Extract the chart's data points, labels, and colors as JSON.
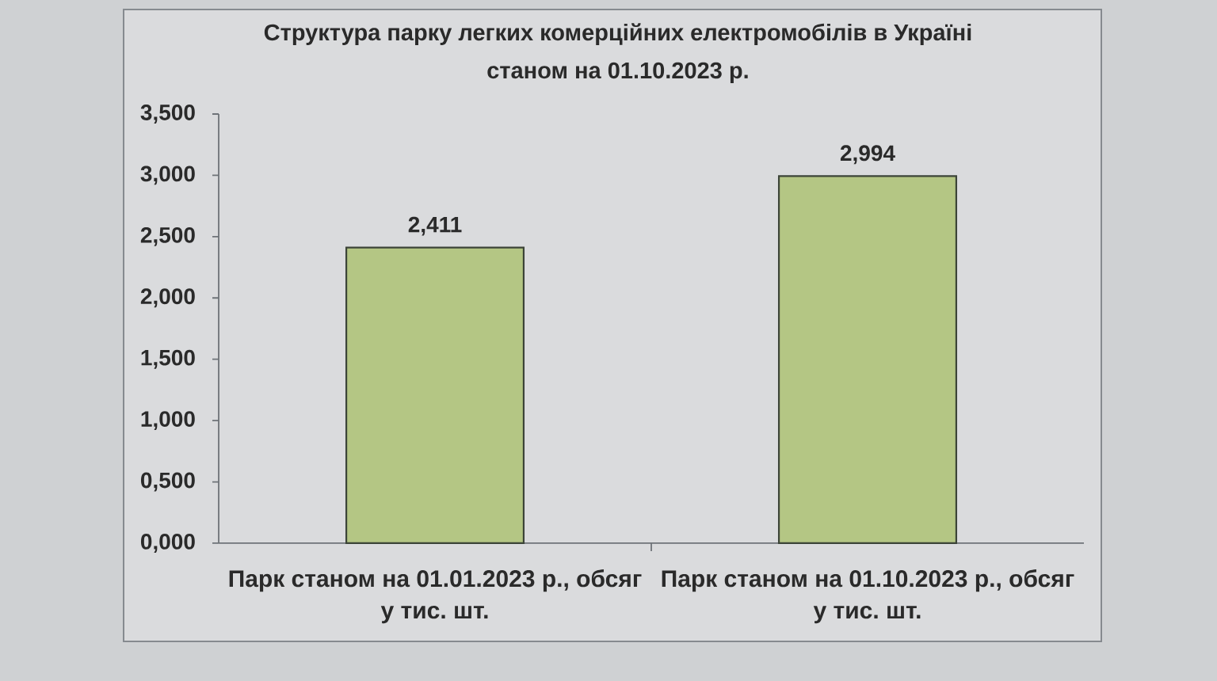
{
  "chart_data": {
    "type": "bar",
    "title": "Структура парку легких комерційних електромобілів в Україні станом на 01.10.2023 р.",
    "categories": [
      "Парк станом на 01.01.2023 р., обсяг у тис. шт.",
      "Парк станом на 01.10.2023 р., обсяг у тис. шт."
    ],
    "values": [
      2.411,
      2.994
    ],
    "value_labels": [
      "2,411",
      "2,994"
    ],
    "color": "#b4c684",
    "ylim": [
      0,
      3.5
    ],
    "yticks": [
      {
        "value": 0,
        "label": "0,000"
      },
      {
        "value": 0.5,
        "label": "0,500"
      },
      {
        "value": 1,
        "label": "1,000"
      },
      {
        "value": 1.5,
        "label": "1,500"
      },
      {
        "value": 2,
        "label": "2,000"
      },
      {
        "value": 2.5,
        "label": "2,500"
      },
      {
        "value": 3,
        "label": "3,000"
      },
      {
        "value": 3.5,
        "label": "3,500"
      }
    ]
  }
}
